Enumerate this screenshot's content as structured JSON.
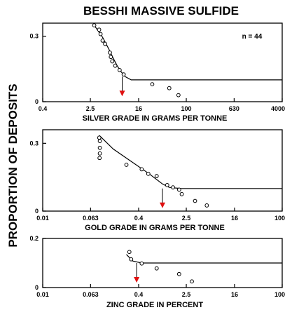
{
  "figure": {
    "title": "BESSHI MASSIVE SULFIDE",
    "ylabel": "PROPORTION OF DEPOSITS",
    "marker_color": "#e01010"
  },
  "chart_data": [
    {
      "type": "scatter",
      "scale": "log",
      "xlabel": "SILVER GRADE IN GRAMS PER TONNE",
      "xlim": [
        0.4,
        4000
      ],
      "ylim": [
        0,
        0.36
      ],
      "xticks": [
        0.4,
        2.5,
        16,
        100,
        630,
        4000
      ],
      "xtick_labels": [
        "0.4",
        "2.5",
        "16",
        "100",
        "630",
        "4000"
      ],
      "yticks": [
        0,
        0.3
      ],
      "ytick_labels": [
        "0",
        "0.3"
      ],
      "annotation": "n = 44",
      "points": [
        {
          "x": 2.9,
          "y": 0.35
        },
        {
          "x": 3.5,
          "y": 0.33
        },
        {
          "x": 3.7,
          "y": 0.31
        },
        {
          "x": 4.0,
          "y": 0.28
        },
        {
          "x": 4.4,
          "y": 0.265
        },
        {
          "x": 5.3,
          "y": 0.225
        },
        {
          "x": 5.5,
          "y": 0.205
        },
        {
          "x": 5.8,
          "y": 0.185
        },
        {
          "x": 6.5,
          "y": 0.165
        },
        {
          "x": 7.7,
          "y": 0.145
        },
        {
          "x": 9.0,
          "y": 0.125
        },
        {
          "x": 27,
          "y": 0.08
        },
        {
          "x": 52,
          "y": 0.062
        },
        {
          "x": 74,
          "y": 0.03
        }
      ],
      "curve": [
        {
          "x": 2.9,
          "y": 0.35
        },
        {
          "x": 4.0,
          "y": 0.295
        },
        {
          "x": 5.0,
          "y": 0.245
        },
        {
          "x": 6.0,
          "y": 0.2
        },
        {
          "x": 7.0,
          "y": 0.165
        },
        {
          "x": 8.0,
          "y": 0.14
        },
        {
          "x": 9.5,
          "y": 0.115
        },
        {
          "x": 12,
          "y": 0.1
        },
        {
          "x": 4000,
          "y": 0.1
        }
      ],
      "marker": {
        "x": 8.5,
        "y_from": 0.115
      }
    },
    {
      "type": "scatter",
      "scale": "log",
      "xlabel": "GOLD GRADE IN GRAMS PER TONNE",
      "xlim": [
        0.01,
        100
      ],
      "ylim": [
        0,
        0.36
      ],
      "xticks": [
        0.01,
        0.063,
        0.4,
        2.5,
        16,
        100
      ],
      "xtick_labels": [
        "0.01",
        "0.063",
        "0.4",
        "2.5",
        "16",
        "100"
      ],
      "yticks": [
        0,
        0.3
      ],
      "ytick_labels": [
        "0",
        "0.3"
      ],
      "points": [
        {
          "x": 0.088,
          "y": 0.325
        },
        {
          "x": 0.09,
          "y": 0.31
        },
        {
          "x": 0.09,
          "y": 0.28
        },
        {
          "x": 0.09,
          "y": 0.255
        },
        {
          "x": 0.089,
          "y": 0.235
        },
        {
          "x": 0.25,
          "y": 0.205
        },
        {
          "x": 0.45,
          "y": 0.185
        },
        {
          "x": 0.58,
          "y": 0.165
        },
        {
          "x": 0.8,
          "y": 0.155
        },
        {
          "x": 1.2,
          "y": 0.115
        },
        {
          "x": 1.5,
          "y": 0.105
        },
        {
          "x": 1.9,
          "y": 0.095
        },
        {
          "x": 2.1,
          "y": 0.075
        },
        {
          "x": 3.5,
          "y": 0.045
        },
        {
          "x": 5.5,
          "y": 0.025
        }
      ],
      "curve": [
        {
          "x": 0.088,
          "y": 0.335
        },
        {
          "x": 0.15,
          "y": 0.275
        },
        {
          "x": 0.3,
          "y": 0.22
        },
        {
          "x": 0.6,
          "y": 0.165
        },
        {
          "x": 1.0,
          "y": 0.12
        },
        {
          "x": 1.3,
          "y": 0.105
        },
        {
          "x": 2.0,
          "y": 0.1
        },
        {
          "x": 100,
          "y": 0.1
        }
      ],
      "marker": {
        "x": 1.0,
        "y_from": 0.1
      }
    },
    {
      "type": "scatter",
      "scale": "log",
      "xlabel": "ZINC GRADE IN PERCENT",
      "xlim": [
        0.01,
        100
      ],
      "ylim": [
        0,
        0.2
      ],
      "xticks": [
        0.01,
        0.063,
        0.4,
        2.5,
        16,
        100
      ],
      "xtick_labels": [
        "0.01",
        "0.063",
        "0.4",
        "2.5",
        "16",
        "100"
      ],
      "yticks": [
        0,
        0.2
      ],
      "ytick_labels": [
        "0",
        "0.2"
      ],
      "points": [
        {
          "x": 0.28,
          "y": 0.145
        },
        {
          "x": 0.3,
          "y": 0.115
        },
        {
          "x": 0.45,
          "y": 0.098
        },
        {
          "x": 0.8,
          "y": 0.078
        },
        {
          "x": 1.9,
          "y": 0.055
        },
        {
          "x": 3.1,
          "y": 0.025
        }
      ],
      "curve": [
        {
          "x": 0.25,
          "y": 0.135
        },
        {
          "x": 0.32,
          "y": 0.108
        },
        {
          "x": 0.45,
          "y": 0.1
        },
        {
          "x": 100,
          "y": 0.1
        }
      ],
      "marker": {
        "x": 0.37,
        "y_from": 0.1
      }
    }
  ]
}
